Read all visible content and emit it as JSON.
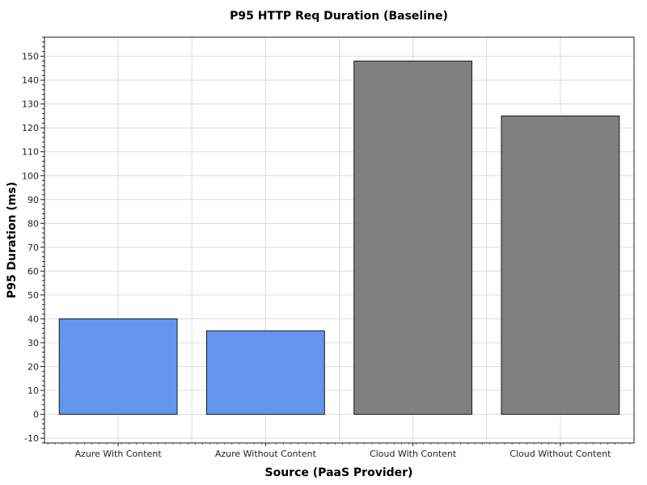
{
  "chart_data": {
    "type": "bar",
    "title": "P95 HTTP Req Duration (Baseline)",
    "xlabel": "Source (PaaS Provider)",
    "ylabel": "P95 Duration (ms)",
    "categories": [
      "Azure With Content",
      "Azure Without Content",
      "Cloud With Content",
      "Cloud Without Content"
    ],
    "values": [
      40,
      35,
      148,
      125
    ],
    "bar_colors": [
      "#6495ED",
      "#6495ED",
      "#808080",
      "#808080"
    ],
    "ylim": [
      -12,
      158
    ],
    "yticks": [
      -10,
      0,
      10,
      20,
      30,
      40,
      50,
      60,
      70,
      80,
      90,
      100,
      110,
      120,
      130,
      140,
      150
    ],
    "grid": true,
    "legend": "none"
  }
}
